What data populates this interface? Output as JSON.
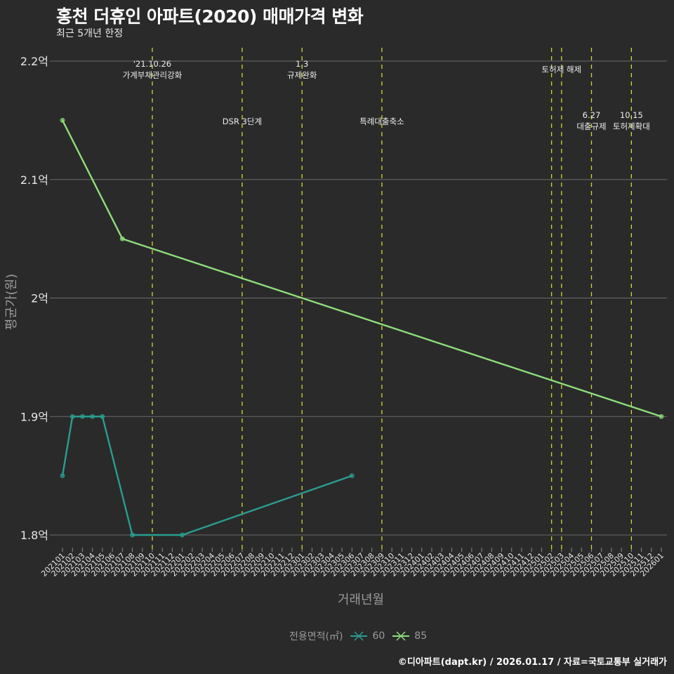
{
  "header": {
    "title": "홍천 더휴인 아파트(2020) 매매가격 변화",
    "subtitle": "최근 5개년 한정"
  },
  "caption": "©디아파트(dapt.kr) / 2026.01.17 / 자료=국토교통부 실거래가",
  "legend": {
    "title": "전용면적(㎡)",
    "items": [
      {
        "label": "60",
        "color": "#2a9d8f"
      },
      {
        "label": "85",
        "color": "#8fde7a"
      }
    ]
  },
  "colors": {
    "background": "#2a2a2b",
    "grid": "#6b6b6b",
    "event_line": "#d6d62a",
    "series_60": "#2a9d8f",
    "series_85": "#8fde7a"
  },
  "chart_data": {
    "type": "line",
    "title": "홍천 더휴인 아파트(2020) 매매가격 변화",
    "subtitle": "최근 5개년 한정",
    "xlabel": "거래년월",
    "ylabel": "평균가(원)",
    "ylim": [
      1.78,
      2.21
    ],
    "y_ticks": [
      "1.8억",
      "1.9억",
      "2억",
      "2.1억",
      "2.2억"
    ],
    "y_tick_values": [
      1.8,
      1.9,
      2.0,
      2.1,
      2.2
    ],
    "x": [
      "202101",
      "202102",
      "202103",
      "202104",
      "202105",
      "202106",
      "202107",
      "202108",
      "202109",
      "202110",
      "202111",
      "202112",
      "202201",
      "202202",
      "202203",
      "202204",
      "202205",
      "202206",
      "202207",
      "202208",
      "202209",
      "202210",
      "202211",
      "202212",
      "202301",
      "202302",
      "202303",
      "202304",
      "202305",
      "202306",
      "202307",
      "202308",
      "202309",
      "202310",
      "202311",
      "202312",
      "202401",
      "202402",
      "202403",
      "202404",
      "202405",
      "202406",
      "202407",
      "202408",
      "202409",
      "202410",
      "202411",
      "202412",
      "202501",
      "202502",
      "202503",
      "202504",
      "202505",
      "202506",
      "202507",
      "202508",
      "202509",
      "202510",
      "202511",
      "202512",
      "202601"
    ],
    "series": [
      {
        "name": "60",
        "points": [
          {
            "x": "202101",
            "y": 1.85
          },
          {
            "x": "202102",
            "y": 1.9
          },
          {
            "x": "202103",
            "y": 1.9
          },
          {
            "x": "202104",
            "y": 1.9
          },
          {
            "x": "202105",
            "y": 1.9
          },
          {
            "x": "202108",
            "y": 1.8
          },
          {
            "x": "202201",
            "y": 1.8
          },
          {
            "x": "202306",
            "y": 1.85
          }
        ]
      },
      {
        "name": "85",
        "points": [
          {
            "x": "202101",
            "y": 2.15
          },
          {
            "x": "202107",
            "y": 2.05
          },
          {
            "x": "202601",
            "y": 1.9
          }
        ]
      }
    ],
    "annotations": [
      {
        "x": "202110",
        "lines": [
          "'21.10.26",
          "가계부채관리강화"
        ],
        "row": 0
      },
      {
        "x": "202207",
        "lines": [
          "DSR 3단계"
        ],
        "row": 1
      },
      {
        "x": "202301",
        "lines": [
          "1.3",
          "규제완화"
        ],
        "row": 0
      },
      {
        "x": "202309",
        "lines": [
          "특례대출축소"
        ],
        "row": 1
      },
      {
        "x": "202502",
        "lines": [],
        "row": 0
      },
      {
        "x": "202503",
        "lines": [
          "토허제 해제"
        ],
        "row": 0
      },
      {
        "x": "202506",
        "lines": [
          "6.27",
          "대출규제"
        ],
        "row": 1
      },
      {
        "x": "202510",
        "lines": [
          "10.15",
          "토허제확대"
        ],
        "row": 1
      }
    ],
    "grid": true,
    "legend_position": "bottom"
  }
}
